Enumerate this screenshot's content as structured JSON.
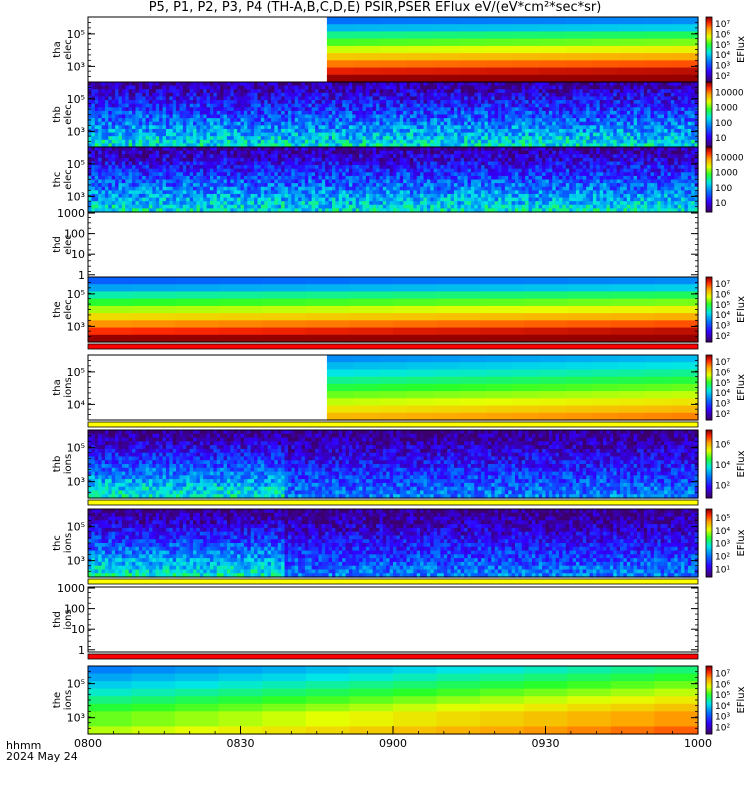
{
  "title": "P5, P1, P2, P3, P4 (TH-A,B,C,D,E) PSIR,PSER EFlux eV/(eV*cm²*sec*sr)",
  "footer": {
    "line1": "hhmm",
    "line2": "2024 May 24"
  },
  "colors": {
    "border": "#000000",
    "background": "#ffffff",
    "yellow_strip": "#ffff00",
    "red_strip": "#ff0000"
  },
  "chart_data": [
    {
      "type": "heatmap",
      "panel": "tha elec",
      "ylabel": [
        "tha",
        "elec"
      ],
      "yscale": "log",
      "yticks": [
        "10⁵",
        "10³"
      ],
      "colorbar": {
        "ticks": [
          "10⁷",
          "10⁶",
          "10⁵",
          "10⁴",
          "10³",
          "10²"
        ],
        "label": "EFlux"
      },
      "data_start_time": "08:47",
      "pattern": "high-flux"
    },
    {
      "type": "heatmap",
      "panel": "thb elec",
      "ylabel": [
        "thb",
        "elec"
      ],
      "yscale": "log",
      "yticks": [
        "10⁵",
        "10³"
      ],
      "colorbar": {
        "ticks": [
          "10000",
          "1000",
          "100",
          "10"
        ],
        "label": ""
      },
      "pattern": "noisy-low"
    },
    {
      "type": "heatmap",
      "panel": "thc elec",
      "ylabel": [
        "thc",
        "elec"
      ],
      "yscale": "log",
      "yticks": [
        "10⁵",
        "10³"
      ],
      "colorbar": {
        "ticks": [
          "10000",
          "1000",
          "100",
          "10"
        ],
        "label": ""
      },
      "pattern": "noisy-low"
    },
    {
      "type": "heatmap",
      "panel": "thd elec",
      "ylabel": [
        "thd",
        "elec"
      ],
      "yscale": "log",
      "yticks": [
        "1000",
        "100",
        "10",
        "1"
      ],
      "colorbar": null,
      "pattern": "empty"
    },
    {
      "type": "heatmap",
      "panel": "the elec",
      "ylabel": [
        "the",
        "elec"
      ],
      "yscale": "log",
      "yticks": [
        "10⁵",
        "10³"
      ],
      "colorbar": {
        "ticks": [
          "10⁷",
          "10⁶",
          "10⁵",
          "10⁴",
          "10³",
          "10²"
        ],
        "label": "EFlux"
      },
      "pattern": "high-flux",
      "bottom_strip": "red_strip"
    },
    {
      "type": "heatmap",
      "panel": "tha ions",
      "ylabel": [
        "tha",
        "ions"
      ],
      "yscale": "log",
      "yticks": [
        "10⁵",
        "10⁴"
      ],
      "colorbar": {
        "ticks": [
          "10⁷",
          "10⁶",
          "10⁵",
          "10⁴",
          "10³",
          "10²"
        ],
        "label": "EFlux"
      },
      "data_start_time": "08:47",
      "pattern": "ion-mid",
      "bottom_strip": "yellow_strip"
    },
    {
      "type": "heatmap",
      "panel": "thb ions",
      "ylabel": [
        "thb",
        "ions"
      ],
      "yscale": "log",
      "yticks": [
        "10⁵",
        "10³"
      ],
      "colorbar": {
        "ticks": [
          "10⁶",
          "10⁴",
          "10²"
        ],
        "label": "EFlux"
      },
      "pattern": "noisy-ion",
      "bottom_strip": "yellow_strip"
    },
    {
      "type": "heatmap",
      "panel": "thc ions",
      "ylabel": [
        "thc",
        "ions"
      ],
      "yscale": "log",
      "yticks": [
        "10⁵",
        "10³"
      ],
      "colorbar": {
        "ticks": [
          "10⁵",
          "10⁴",
          "10³",
          "10²",
          "10¹"
        ],
        "label": "EFlux"
      },
      "pattern": "noisy-ion",
      "bottom_strip": "yellow_strip"
    },
    {
      "type": "heatmap",
      "panel": "thd ions",
      "ylabel": [
        "thd",
        "ions"
      ],
      "yscale": "log",
      "yticks": [
        "1000",
        "100",
        "10",
        "1"
      ],
      "colorbar": null,
      "pattern": "empty",
      "bottom_strip": "red_strip"
    },
    {
      "type": "heatmap",
      "panel": "the ions",
      "ylabel": [
        "the",
        "ions"
      ],
      "yscale": "log",
      "yticks": [
        "10⁵",
        "10³"
      ],
      "colorbar": {
        "ticks": [
          "10⁷",
          "10⁶",
          "10⁵",
          "10⁴",
          "10³",
          "10²"
        ],
        "label": "EFlux"
      },
      "pattern": "ion-high"
    }
  ],
  "x_axis": {
    "ticks": [
      "0800",
      "0830",
      "0900",
      "0930",
      "1000"
    ],
    "start_minutes": 0,
    "end_minutes": 120
  }
}
